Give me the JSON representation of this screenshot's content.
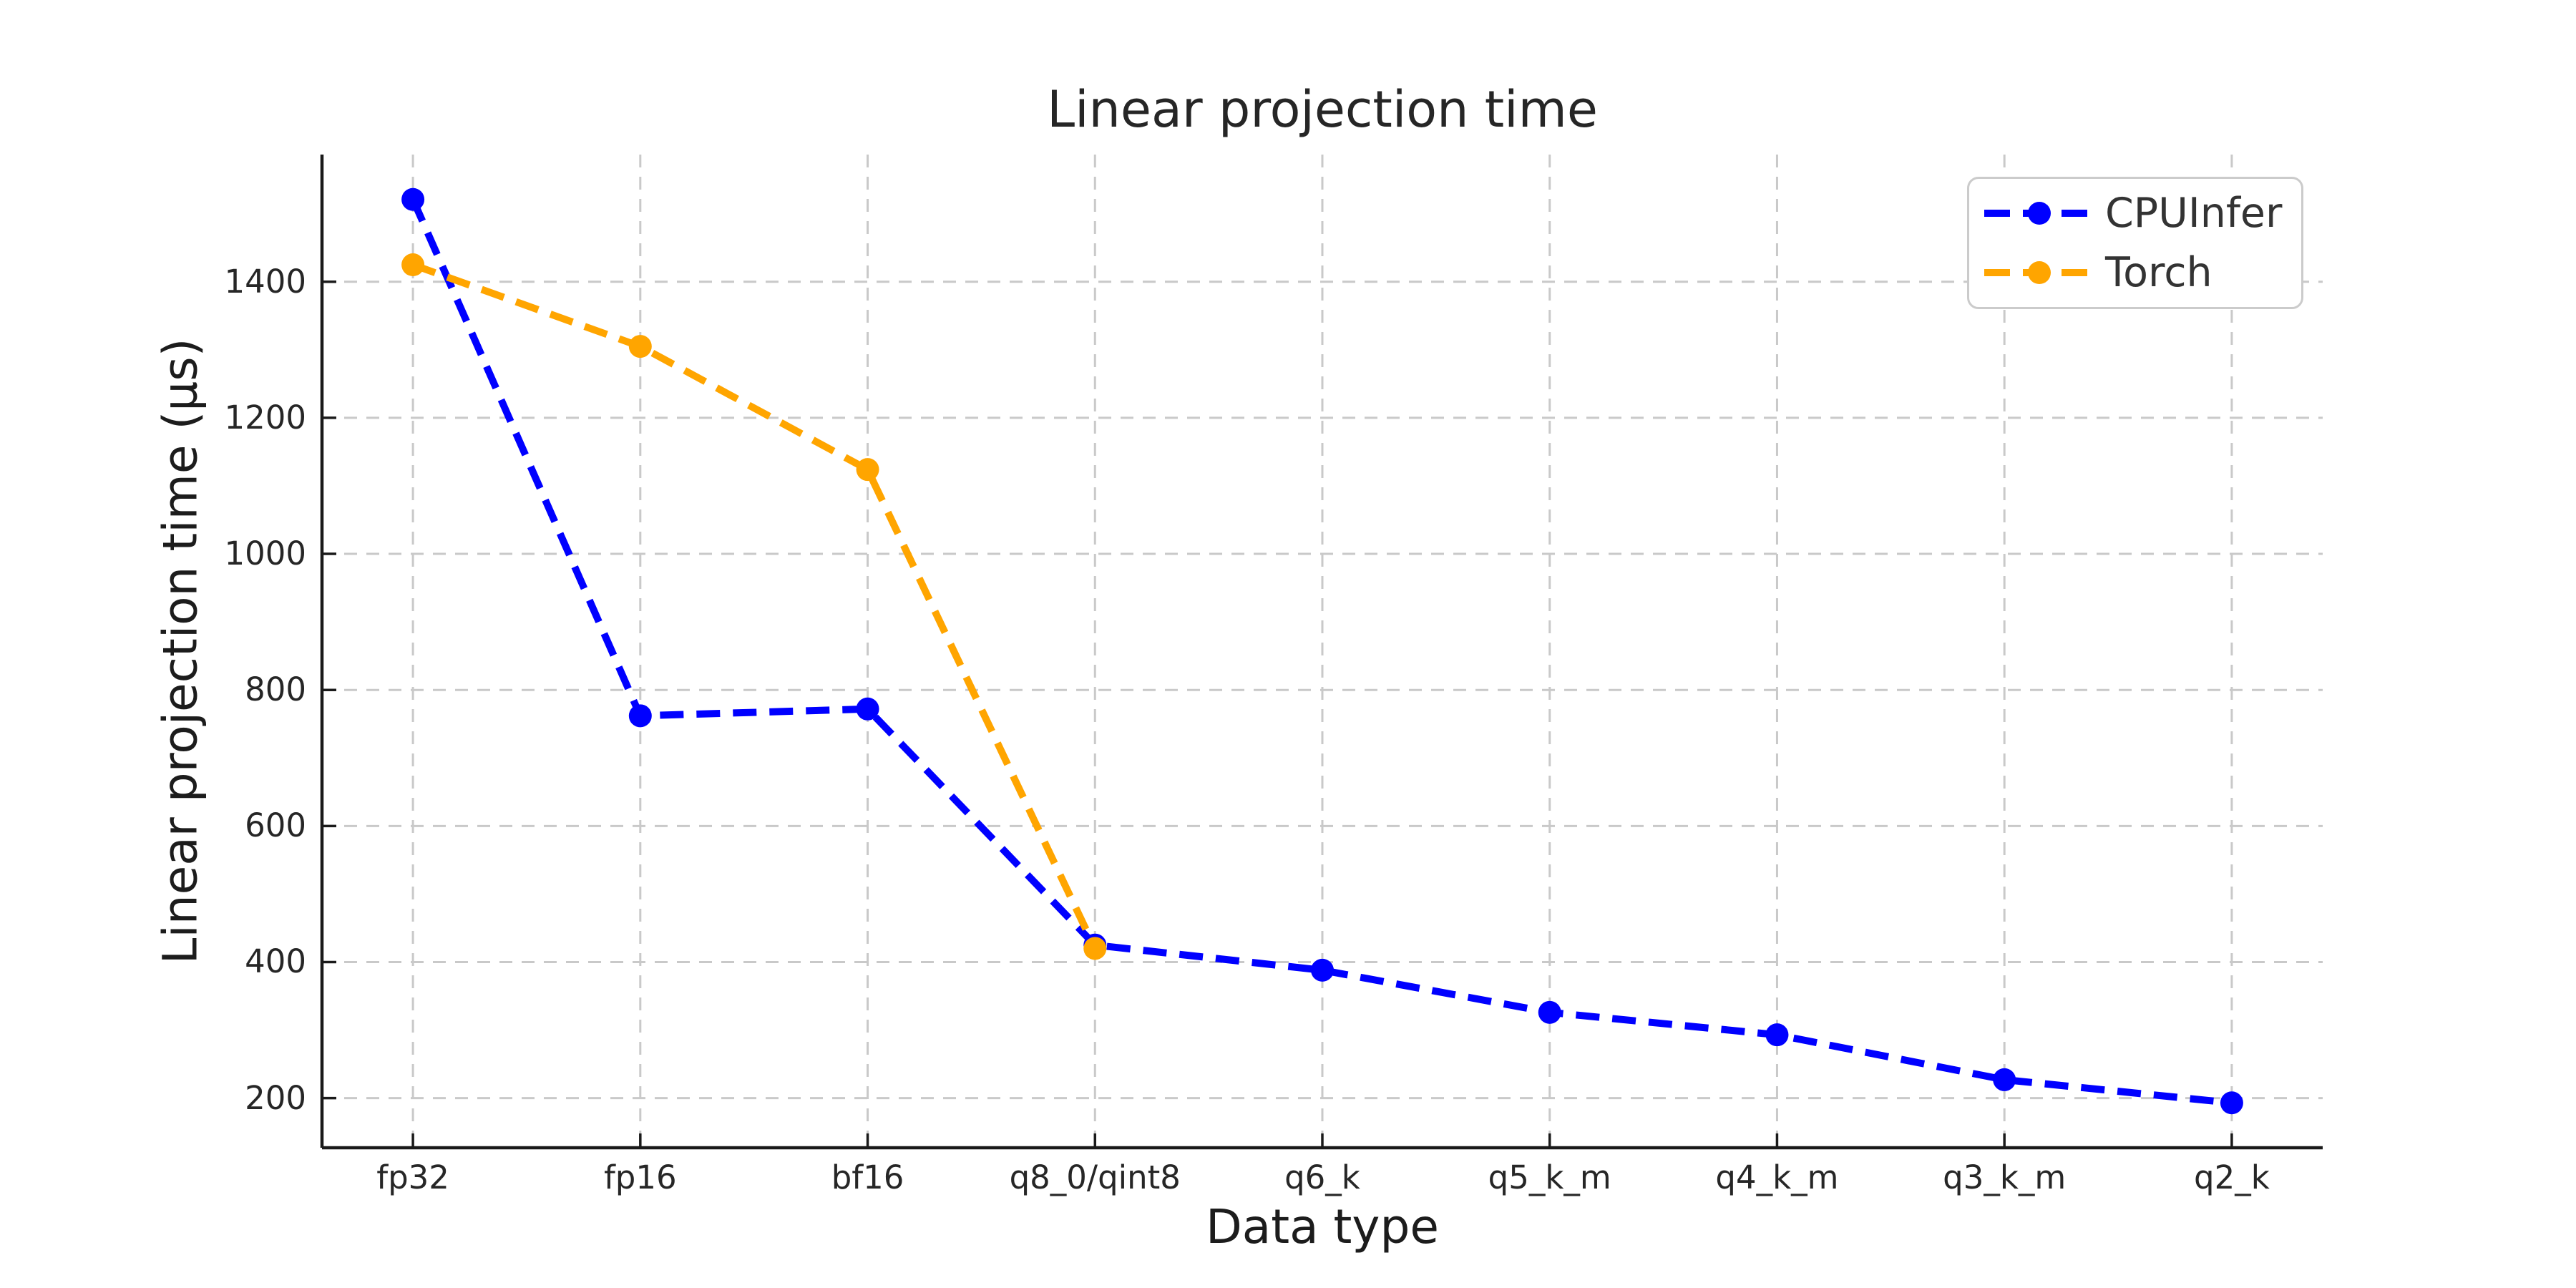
{
  "figure": {
    "background": "#ffffff",
    "text_color": "#262626"
  },
  "chart_data": {
    "type": "line",
    "title": "Linear projection time",
    "xlabel": "Data type",
    "ylabel": "Linear projection time (μs)",
    "categories": [
      "fp32",
      "fp16",
      "bf16",
      "q8_0/qint8",
      "q6_k",
      "q5_k_m",
      "q4_k_m",
      "q3_k_m",
      "q2_k"
    ],
    "yticks": [
      200,
      400,
      600,
      800,
      1000,
      1200,
      1400
    ],
    "ylim": [
      127,
      1587
    ],
    "grid": true,
    "grid_style": "dashed",
    "line_style": "dashed",
    "marker": "circle",
    "legend_position": "upper right",
    "series": [
      {
        "name": "CPUInfer",
        "color": "#0000ff",
        "values": [
          1521,
          762,
          772,
          425,
          388,
          326,
          293,
          227,
          193
        ]
      },
      {
        "name": "Torch",
        "color": "#ffa500",
        "values": [
          1425,
          1305,
          1124,
          420,
          null,
          null,
          null,
          null,
          null
        ]
      }
    ]
  }
}
